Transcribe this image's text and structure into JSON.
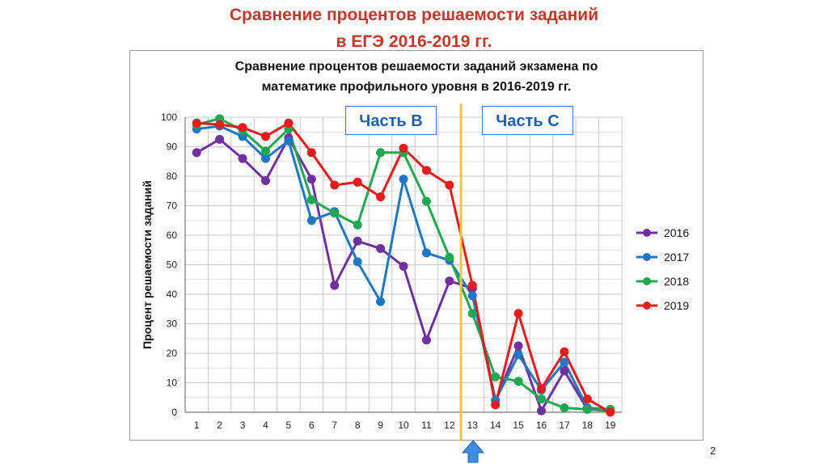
{
  "slide": {
    "title_line1": "Сравнение процентов решаемости заданий",
    "title_line2": "в ЕГЭ 2016-2019 гг.",
    "page_number": "2"
  },
  "annotations": {
    "part_b": "Часть В",
    "part_c": "Часть С"
  },
  "chart_data": {
    "type": "line",
    "title_line1": "Сравнение процентов решаемости заданий экзамена по",
    "title_line2": "математике профильного уровня в 2016-2019 гг.",
    "xlabel": "",
    "ylabel": "Процент  решаемости заданий",
    "ylim": [
      0,
      100
    ],
    "yticks": [
      0,
      10,
      20,
      30,
      40,
      50,
      60,
      70,
      80,
      90,
      100
    ],
    "grid": true,
    "legend_position": "right",
    "divider_after_category": "12",
    "categories": [
      "1",
      "2",
      "3",
      "4",
      "5",
      "6",
      "7",
      "8",
      "9",
      "10",
      "11",
      "12",
      "13",
      "14",
      "15",
      "16",
      "17",
      "18",
      "19"
    ],
    "series": [
      {
        "name": "2016",
        "color": "#7030a0",
        "values": [
          88,
          92.5,
          86,
          78.5,
          93,
          79,
          43,
          58,
          55.5,
          49.5,
          24.5,
          44.5,
          42,
          4,
          22.5,
          0.5,
          14,
          1,
          0.5
        ]
      },
      {
        "name": "2017",
        "color": "#1f77c4",
        "values": [
          96,
          97,
          93.5,
          86,
          92,
          65,
          68,
          51,
          37.5,
          79,
          54,
          51.5,
          39.5,
          4,
          19.5,
          7.5,
          17,
          1.5,
          1
        ]
      },
      {
        "name": "2018",
        "color": "#1fa84f",
        "values": [
          97.5,
          99.5,
          95.5,
          88.5,
          96,
          72,
          67.5,
          63.5,
          88,
          88,
          71.5,
          52.5,
          33.5,
          12,
          10.5,
          4.5,
          1.5,
          1,
          1
        ]
      },
      {
        "name": "2019",
        "color": "#e81b1b",
        "values": [
          98,
          97.5,
          96.5,
          93.5,
          98,
          88,
          77,
          78,
          73,
          89.5,
          82,
          77,
          43,
          2.5,
          33.5,
          8,
          20.5,
          4.5,
          0
        ]
      }
    ]
  }
}
